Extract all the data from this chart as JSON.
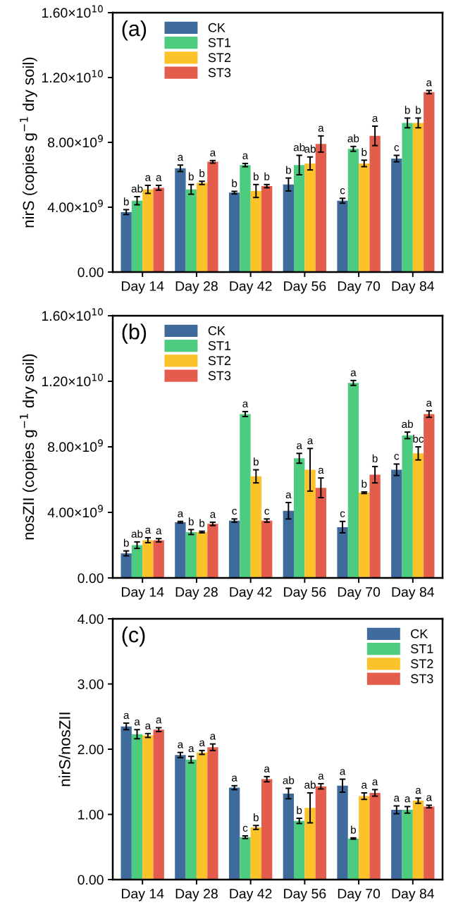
{
  "chart_data": [
    {
      "type": "bar",
      "ylabel": "nirS (copies g$^{−1}$ dry soil)",
      "annotations": [
        "(a)"
      ],
      "categories": [
        "Day 14",
        "Day 28",
        "Day 42",
        "Day 56",
        "Day 70",
        "Day 84"
      ],
      "series": [
        {
          "name": "CK",
          "color": "#3f6b9c",
          "values": [
            3700000000.0,
            6400000000.0,
            4900000000.0,
            5400000000.0,
            4400000000.0,
            7000000000.0
          ],
          "errors": [
            150000000.0,
            200000000.0,
            80000000.0,
            400000000.0,
            150000000.0,
            200000000.0
          ],
          "value_labels": [
            "b",
            "a",
            "b",
            "b",
            "c",
            "c"
          ]
        },
        {
          "name": "ST1",
          "color": "#4dcb7e",
          "values": [
            4400000000.0,
            5100000000.0,
            6600000000.0,
            6600000000.0,
            7600000000.0,
            9200000000.0
          ],
          "errors": [
            250000000.0,
            300000000.0,
            100000000.0,
            600000000.0,
            150000000.0,
            300000000.0
          ],
          "value_labels": [
            "ab",
            "b",
            "a",
            "ab",
            "ab",
            "b"
          ]
        },
        {
          "name": "ST2",
          "color": "#fcc22a",
          "values": [
            5100000000.0,
            5500000000.0,
            5000000000.0,
            6700000000.0,
            6700000000.0,
            9200000000.0
          ],
          "errors": [
            250000000.0,
            100000000.0,
            400000000.0,
            400000000.0,
            200000000.0,
            300000000.0
          ],
          "value_labels": [
            "a",
            "b",
            "b",
            "ab",
            "b",
            "b"
          ]
        },
        {
          "name": "ST3",
          "color": "#e45c4c",
          "values": [
            5200000000.0,
            6800000000.0,
            5300000000.0,
            7900000000.0,
            8400000000.0,
            11100000000.0
          ],
          "errors": [
            150000000.0,
            80000000.0,
            100000000.0,
            500000000.0,
            600000000.0,
            100000000.0
          ],
          "value_labels": [
            "a",
            "a",
            "b",
            "a",
            "a",
            "a"
          ]
        }
      ],
      "ylim": [
        0,
        16000000000.0
      ],
      "yticks": [
        {
          "value": 0,
          "label": "0.00"
        },
        {
          "value": 4000000000.0,
          "label": "4.00×10$^{9}$"
        },
        {
          "value": 8000000000.0,
          "label": "8.00×10$^{9}$"
        },
        {
          "value": 12000000000.0,
          "label": "1.20×10$^{10}$"
        },
        {
          "value": 16000000000.0,
          "label": "1.60×10$^{10}$"
        }
      ],
      "legend": "top left"
    },
    {
      "type": "bar",
      "ylabel": "nosZII (copies g$^{−1}$ dry soil)",
      "annotations": [
        "(b)"
      ],
      "categories": [
        "Day 14",
        "Day 28",
        "Day 42",
        "Day 56",
        "Day 70",
        "Day 84"
      ],
      "series": [
        {
          "name": "CK",
          "color": "#3f6b9c",
          "values": [
            1500000000.0,
            3400000000.0,
            3500000000.0,
            4100000000.0,
            3100000000.0,
            6600000000.0
          ],
          "errors": [
            150000000.0,
            50000000.0,
            100000000.0,
            500000000.0,
            350000000.0,
            350000000.0
          ],
          "value_labels": [
            "b",
            "a",
            "c",
            "a",
            "c",
            "c"
          ]
        },
        {
          "name": "ST1",
          "color": "#4dcb7e",
          "values": [
            2000000000.0,
            2800000000.0,
            10000000000.0,
            7300000000.0,
            11900000000.0,
            8700000000.0
          ],
          "errors": [
            200000000.0,
            150000000.0,
            150000000.0,
            300000000.0,
            150000000.0,
            200000000.0
          ],
          "value_labels": [
            "ab",
            "b",
            "a",
            "a",
            "a",
            "ab"
          ]
        },
        {
          "name": "ST2",
          "color": "#fcc22a",
          "values": [
            2300000000.0,
            2800000000.0,
            6200000000.0,
            6600000000.0,
            5200000000.0,
            7600000000.0
          ],
          "errors": [
            150000000.0,
            50000000.0,
            400000000.0,
            1300000000.0,
            50000000.0,
            400000000.0
          ],
          "value_labels": [
            "a",
            "b",
            "b",
            "a",
            "b",
            "bc"
          ]
        },
        {
          "name": "ST3",
          "color": "#e45c4c",
          "values": [
            2300000000.0,
            3300000000.0,
            3500000000.0,
            5500000000.0,
            6300000000.0,
            10000000000.0
          ],
          "errors": [
            100000000.0,
            100000000.0,
            100000000.0,
            600000000.0,
            500000000.0,
            200000000.0
          ],
          "value_labels": [
            "a",
            "a",
            "c",
            "a",
            "b",
            "a"
          ]
        }
      ],
      "ylim": [
        0,
        16000000000.0
      ],
      "yticks": [
        {
          "value": 0,
          "label": "0.00"
        },
        {
          "value": 4000000000.0,
          "label": "4.00×10$^{9}$"
        },
        {
          "value": 8000000000.0,
          "label": "8.00×10$^{9}$"
        },
        {
          "value": 12000000000.0,
          "label": "1.20×10$^{10}$"
        },
        {
          "value": 16000000000.0,
          "label": "1.60×10$^{10}$"
        }
      ],
      "legend": "top left"
    },
    {
      "type": "bar",
      "ylabel": "nirS/nosZII",
      "annotations": [
        "(c)"
      ],
      "categories": [
        "Day 14",
        "Day 28",
        "Day 42",
        "Day 56",
        "Day 70",
        "Day 84"
      ],
      "series": [
        {
          "name": "CK",
          "color": "#3f6b9c",
          "values": [
            2.35,
            1.91,
            1.41,
            1.32,
            1.44,
            1.07
          ],
          "errors": [
            0.05,
            0.04,
            0.03,
            0.08,
            0.1,
            0.06
          ],
          "value_labels": [
            "a",
            "a",
            "a",
            "ab",
            "a",
            "a"
          ]
        },
        {
          "name": "ST1",
          "color": "#4dcb7e",
          "values": [
            2.23,
            1.84,
            0.65,
            0.9,
            0.63,
            1.07
          ],
          "errors": [
            0.07,
            0.05,
            0.02,
            0.04,
            0.01,
            0.05
          ],
          "value_labels": [
            "a",
            "a",
            "c",
            "b",
            "b",
            "a"
          ]
        },
        {
          "name": "ST2",
          "color": "#fcc22a",
          "values": [
            2.21,
            1.95,
            0.8,
            1.1,
            1.28,
            1.21
          ],
          "errors": [
            0.03,
            0.03,
            0.03,
            0.23,
            0.05,
            0.04
          ],
          "value_labels": [
            "a",
            "a",
            "b",
            "ab",
            "a",
            "a"
          ]
        },
        {
          "name": "ST3",
          "color": "#e45c4c",
          "values": [
            2.3,
            2.03,
            1.54,
            1.43,
            1.33,
            1.12
          ],
          "errors": [
            0.03,
            0.05,
            0.04,
            0.04,
            0.05,
            0.02
          ],
          "value_labels": [
            "a",
            "a",
            "a",
            "a",
            "a",
            "a"
          ]
        }
      ],
      "ylim": [
        0,
        4
      ],
      "yticks": [
        {
          "value": 0,
          "label": "0.00"
        },
        {
          "value": 1,
          "label": "1.00"
        },
        {
          "value": 2,
          "label": "2.00"
        },
        {
          "value": 3,
          "label": "3.00"
        },
        {
          "value": 4,
          "label": "4.00"
        }
      ],
      "legend": "top right"
    }
  ]
}
